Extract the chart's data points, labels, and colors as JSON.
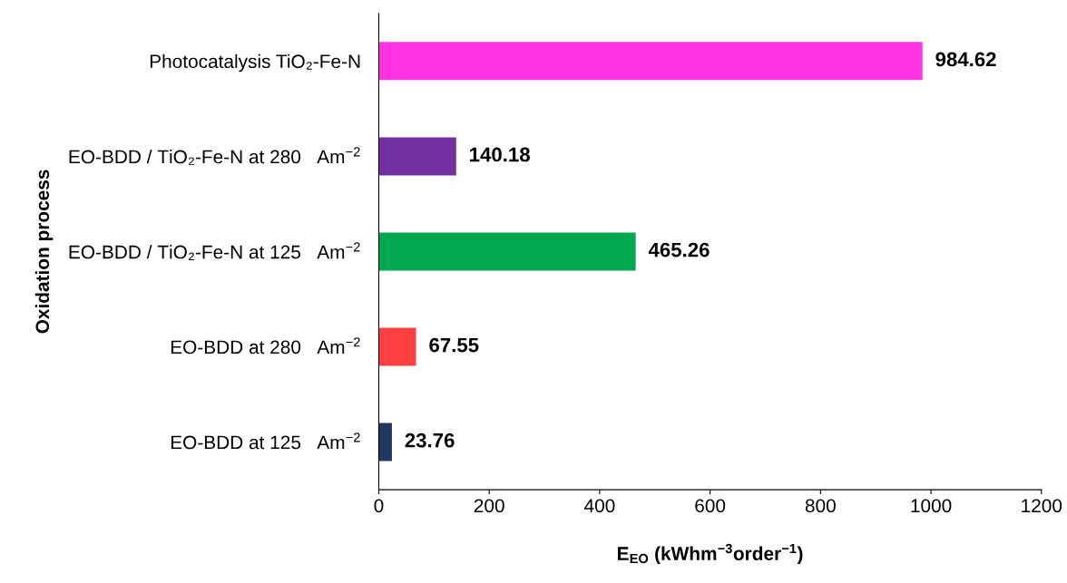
{
  "chart_data": {
    "type": "bar",
    "orientation": "horizontal",
    "categories": [
      "Photocatalysis TiO₂-Fe-N",
      "EO-BDD / TiO₂-Fe-N at 280   Am$^{−2}$",
      "EO-BDD / TiO₂-Fe-N at 125   Am$^{−2}$",
      "EO-BDD at 280   Am$^{−2}$",
      "EO-BDD at 125   Am$^{−2}$"
    ],
    "values": [
      984.62,
      140.18,
      465.26,
      67.55,
      23.76
    ],
    "colors": [
      "#ff33e0",
      "#7030a0",
      "#00a84f",
      "#ff4040",
      "#1f3864"
    ],
    "xlabel": "E$_{EO}$ (kWhm$^{−3}$order$^{−1}$)",
    "ylabel": "Oxidation process",
    "xlim": [
      0,
      1200
    ],
    "xticks": [
      0,
      200,
      400,
      600,
      800,
      1000,
      1200
    ],
    "data_labels": true,
    "grid": false
  }
}
